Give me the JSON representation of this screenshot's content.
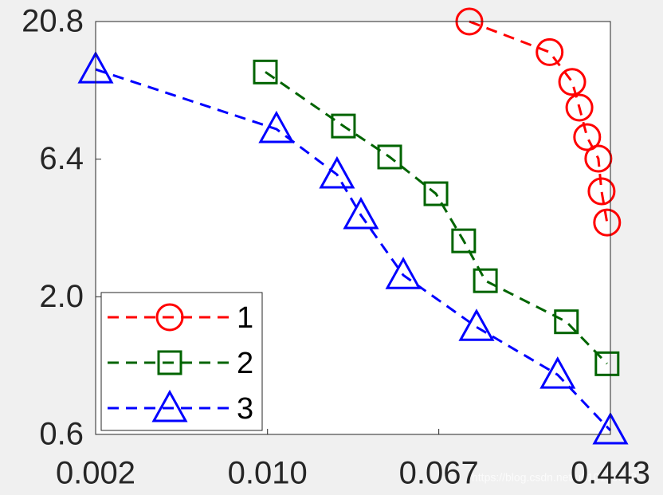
{
  "chart_data": {
    "type": "line",
    "xscale": "log",
    "yscale": "log",
    "xlim": [
      0.00154,
      0.443
    ],
    "ylim": [
      0.606,
      20.8
    ],
    "xticks": [
      {
        "value": 0.00154,
        "label": "0.002"
      },
      {
        "value": 0.0102,
        "label": "0.010"
      },
      {
        "value": 0.0671,
        "label": "0.067"
      },
      {
        "value": 0.443,
        "label": "0.443"
      }
    ],
    "yticks": [
      {
        "value": 0.606,
        "label": "0.6"
      },
      {
        "value": 1.97,
        "label": "2.0"
      },
      6.4,
      20.8
    ],
    "legend": "lower left",
    "series": [
      {
        "name": "1",
        "color": "#ff0000",
        "marker": "circle",
        "x": [
          0.0939,
          0.227,
          0.291,
          0.315,
          0.343,
          0.388,
          0.402,
          0.427
        ],
        "values": [
          20.8,
          16.0,
          12.4,
          9.95,
          7.73,
          6.43,
          4.86,
          3.72
        ]
      },
      {
        "name": "2",
        "color": "#006400",
        "marker": "square",
        "x": [
          0.00996,
          0.0235,
          0.0391,
          0.065,
          0.0882,
          0.112,
          0.273,
          0.427
        ],
        "values": [
          13.5,
          8.5,
          6.52,
          4.76,
          3.18,
          2.26,
          1.59,
          1.11
        ]
      },
      {
        "name": "3",
        "color": "#0000ff",
        "marker": "triangle",
        "x": [
          0.00154,
          0.01125,
          0.0219,
          0.0285,
          0.0454,
          0.1016,
          0.248,
          0.443
        ],
        "values": [
          13.8,
          8.28,
          5.61,
          3.96,
          2.37,
          1.52,
          1.01,
          0.627
        ]
      }
    ],
    "watermark": "https://blog.csdn.net/u010159842"
  }
}
